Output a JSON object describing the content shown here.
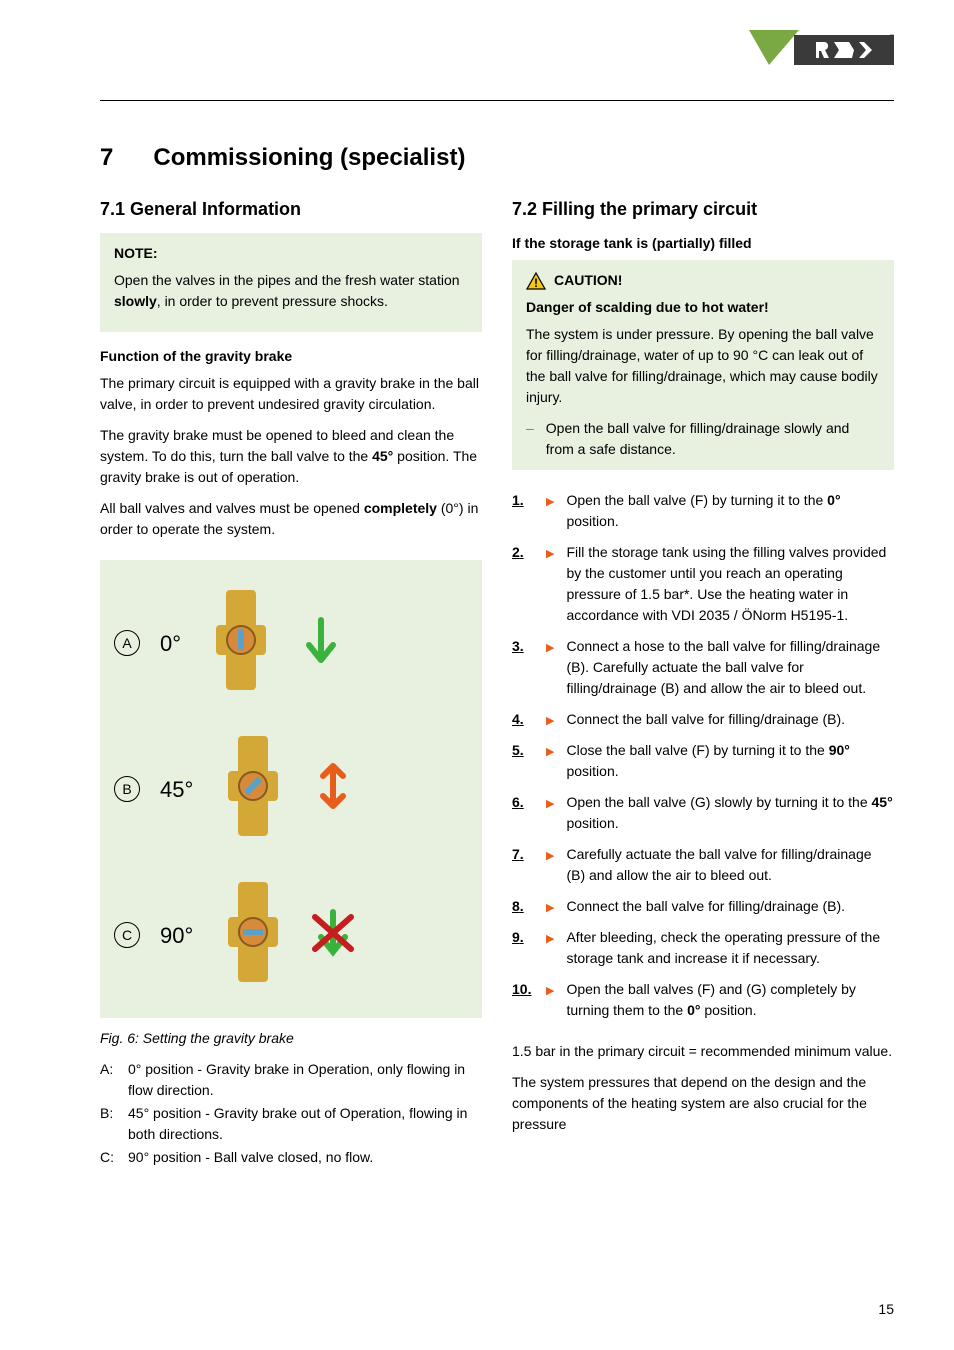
{
  "logo": {
    "brand_text": "REMKO",
    "green": "#7aa843",
    "dark": "#3a3a3a",
    "red": "#c41e1e"
  },
  "chapter": {
    "number": "7",
    "title": "Commissioning (specialist)"
  },
  "col1": {
    "section_title": "7.1  General Information",
    "note": {
      "title": "NOTE:",
      "text_1": "Open the valves in the pipes and the fresh water station ",
      "text_bold": "slowly",
      "text_2": ", in order to prevent pressure shocks."
    },
    "gravity_brake_heading": "Function of the gravity brake",
    "para1": "The primary circuit is equipped with a gravity brake in the ball valve, in order to prevent undesired gravity circulation.",
    "para2_1": "The gravity brake must be opened to bleed and clean the system. To do this, turn the ball valve to the ",
    "para2_bold": "45°",
    "para2_2": " position. The gravity brake is out of operation.",
    "para3_1": "All ball valves and valves must be opened ",
    "para3_bold": "completely",
    "para3_2": " (0°) in order to operate the system.",
    "figure": {
      "rows": [
        {
          "letter": "A",
          "angle": "0°",
          "arrow_color": "#3bb23b",
          "arrow_type": "down"
        },
        {
          "letter": "B",
          "angle": "45°",
          "arrow_color": "#e85d1a",
          "arrow_type": "updown"
        },
        {
          "letter": "C",
          "angle": "90°",
          "arrow_color": "#c41e1e",
          "arrow_type": "cross"
        }
      ],
      "valve_color": "#d4a837",
      "indicator_color": "#d78a3a",
      "caption": "Fig. 6: Setting the gravity brake",
      "legend": [
        {
          "key": "A:",
          "text": "0° position - Gravity brake in Operation, only flowing in flow direction."
        },
        {
          "key": "B:",
          "text": "45° position - Gravity brake out of Operation, flowing in both directions."
        },
        {
          "key": "C:",
          "text": "90° position - Ball valve closed, no flow."
        }
      ]
    }
  },
  "col2": {
    "section_title": "7.2  Filling the primary circuit",
    "subheading": "If the storage tank is (partially) filled",
    "caution": {
      "title": "CAUTION!",
      "sub": "Danger of scalding due to hot water!",
      "text": "The system is under pressure. By opening the ball valve for filling/drainage, water of up to 90 °C can leak out of the ball valve for filling/drainage, which may cause bodily injury.",
      "bullet": "Open the ball valve for filling/drainage slowly and from a safe distance."
    },
    "steps": [
      {
        "pre": "Open the ball valve (F) by turning it to the ",
        "bold": "0°",
        "post": " position."
      },
      {
        "pre": "Fill the storage tank using the filling valves provided by the customer until you reach an operating pressure of 1.5 bar*. Use the heating water in accordance with VDI 2035 / ÖNorm H5195-1.",
        "bold": "",
        "post": ""
      },
      {
        "pre": "Connect a hose to the ball valve for filling/drainage (B). Carefully actuate the ball valve for filling/drainage (B) and allow the air to bleed out.",
        "bold": "",
        "post": ""
      },
      {
        "pre": "Connect the ball valve for filling/drainage (B).",
        "bold": "",
        "post": ""
      },
      {
        "pre": "Close the ball valve (F) by turning it to the ",
        "bold": "90°",
        "post": " position."
      },
      {
        "pre": "Open the ball valve (G) slowly by turning it to the ",
        "bold": "45°",
        "post": " position."
      },
      {
        "pre": "Carefully actuate the ball valve for filling/drainage (B) and allow the air to bleed out.",
        "bold": "",
        "post": ""
      },
      {
        "pre": "Connect the ball valve for filling/drainage (B).",
        "bold": "",
        "post": ""
      },
      {
        "pre": "After bleeding, check the operating pressure of the storage tank and increase it if necessary.",
        "bold": "",
        "post": ""
      },
      {
        "pre": "Open the ball valves (F) and (G) completely by turning them to the ",
        "bold": "0°",
        "post": " position."
      }
    ],
    "note1": "1.5 bar in the primary circuit = recommended minimum value.",
    "note2": "The system pressures that depend on the design and the components of the heating system are also crucial for the pressure"
  },
  "page_number": "15"
}
